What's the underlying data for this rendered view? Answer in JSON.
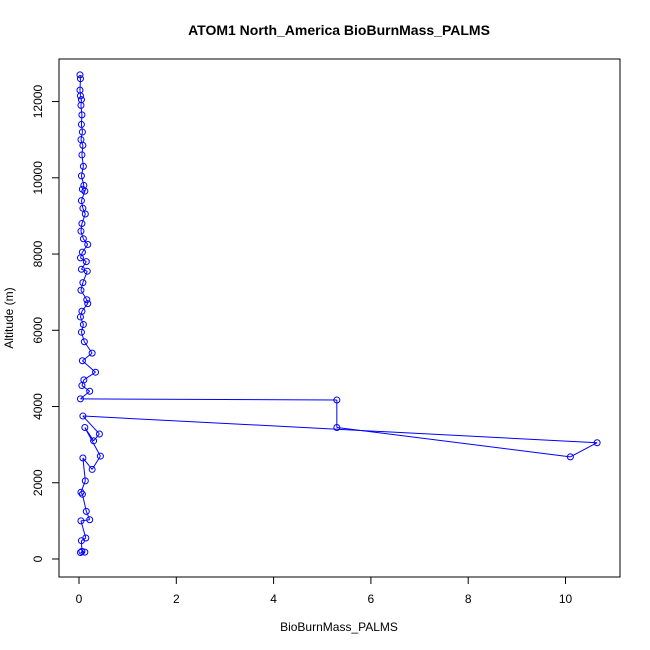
{
  "chart_data": {
    "type": "line",
    "title": "ATOM1 North_America BioBurnMass_PALMS",
    "xlabel": "BioBurnMass_PALMS",
    "ylabel": "Altitude (m)",
    "xlim": [
      0,
      11
    ],
    "ylim": [
      0,
      13000
    ],
    "xticks": [
      0,
      2,
      4,
      6,
      8,
      10
    ],
    "yticks": [
      0,
      2000,
      4000,
      6000,
      8000,
      10000,
      12000
    ],
    "grid": false,
    "series_color": "#0000ff",
    "marker": "open-circle",
    "series": [
      {
        "points": [
          [
            0.02,
            12700
          ],
          [
            0.03,
            12600
          ],
          [
            0.02,
            12300
          ],
          [
            0.03,
            12150
          ],
          [
            0.05,
            12050
          ],
          [
            0.04,
            11900
          ],
          [
            0.06,
            11650
          ],
          [
            0.05,
            11400
          ],
          [
            0.07,
            11200
          ],
          [
            0.04,
            11000
          ],
          [
            0.08,
            10850
          ],
          [
            0.06,
            10600
          ],
          [
            0.09,
            10300
          ],
          [
            0.05,
            10050
          ],
          [
            0.1,
            9800
          ],
          [
            0.07,
            9700
          ],
          [
            0.12,
            9650
          ],
          [
            0.05,
            9400
          ],
          [
            0.08,
            9200
          ],
          [
            0.13,
            9050
          ],
          [
            0.06,
            8800
          ],
          [
            0.04,
            8600
          ],
          [
            0.09,
            8400
          ],
          [
            0.18,
            8250
          ],
          [
            0.07,
            8050
          ],
          [
            0.03,
            7900
          ],
          [
            0.15,
            7800
          ],
          [
            0.05,
            7600
          ],
          [
            0.17,
            7550
          ],
          [
            0.08,
            7250
          ],
          [
            0.04,
            7050
          ],
          [
            0.16,
            6800
          ],
          [
            0.18,
            6700
          ],
          [
            0.06,
            6500
          ],
          [
            0.03,
            6350
          ],
          [
            0.09,
            6150
          ],
          [
            0.05,
            5950
          ],
          [
            0.11,
            5700
          ],
          [
            0.27,
            5400
          ],
          [
            0.07,
            5200
          ],
          [
            0.34,
            4900
          ],
          [
            0.1,
            4700
          ],
          [
            0.06,
            4550
          ],
          [
            0.22,
            4400
          ],
          [
            0.03,
            4200
          ],
          [
            5.3,
            4170
          ],
          [
            5.3,
            3450
          ],
          [
            10.1,
            2680
          ],
          [
            10.65,
            3050
          ],
          [
            0.08,
            3750
          ],
          [
            0.42,
            3280
          ],
          [
            0.3,
            3100
          ],
          [
            0.12,
            3450
          ],
          [
            0.44,
            2700
          ],
          [
            0.27,
            2350
          ],
          [
            0.08,
            2650
          ],
          [
            0.13,
            2050
          ],
          [
            0.04,
            1750
          ],
          [
            0.07,
            1700
          ],
          [
            0.15,
            1250
          ],
          [
            0.22,
            1030
          ],
          [
            0.04,
            1000
          ],
          [
            0.14,
            550
          ],
          [
            0.05,
            480
          ],
          [
            0.06,
            200
          ],
          [
            0.12,
            180
          ],
          [
            0.03,
            170
          ]
        ]
      }
    ]
  }
}
